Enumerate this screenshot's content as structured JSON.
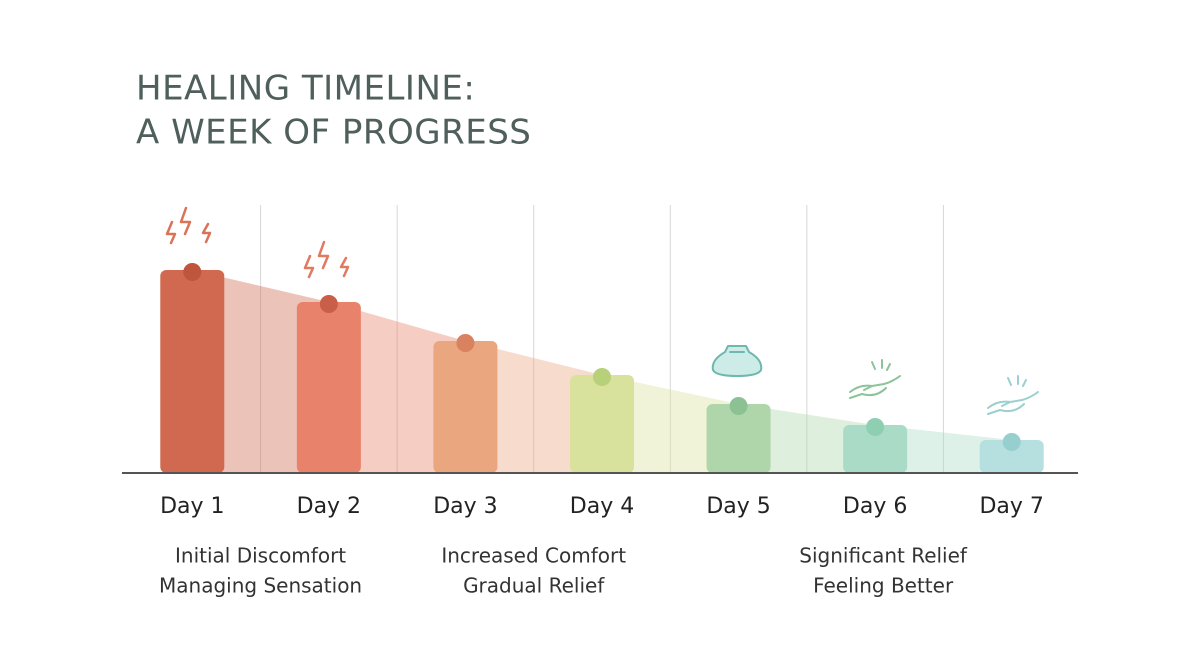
{
  "chart_data": {
    "type": "bar",
    "title": [
      "HEALING TIMELINE:",
      "A WEEK OF PROGRESS"
    ],
    "categories": [
      "Day 1",
      "Day 2",
      "Day 3",
      "Day 4",
      "Day 5",
      "Day 6",
      "Day 7"
    ],
    "values": [
      203,
      171,
      132,
      98,
      69,
      48,
      33
    ],
    "colors": [
      "#d0694f",
      "#e8826a",
      "#eaa67f",
      "#d9e29c",
      "#afd6ab",
      "#a9dbc6",
      "#b6e0e0"
    ],
    "dot_colors": [
      "#c0553d",
      "#c95f48",
      "#d9825f",
      "#b9d07a",
      "#8cc193",
      "#8ecfb2",
      "#97cece"
    ],
    "ylim": [
      0,
      268
    ],
    "annotations": [
      [
        "Initial Discomfort",
        "Managing Sensation"
      ],
      [
        "Increased Comfort",
        "Gradual Relief"
      ],
      [
        "Significant Relief",
        "Feeling Better"
      ]
    ]
  }
}
